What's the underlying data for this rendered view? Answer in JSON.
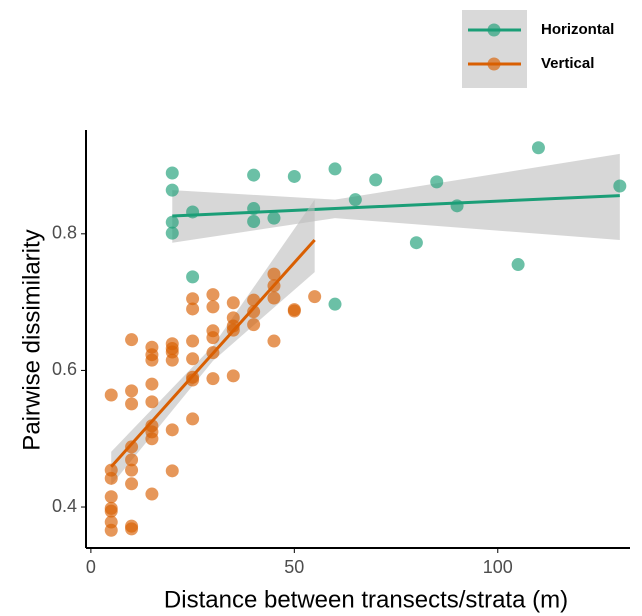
{
  "chart_data": {
    "type": "scatter",
    "x_label": "Distance between transects/strata (m)",
    "y_label": "Pairwise dissimilarity",
    "xlim": [
      -1.2,
      132.5
    ],
    "ylim": [
      0.34,
      0.952
    ],
    "xticks": [
      0,
      50,
      100
    ],
    "yticks": [
      0.4,
      0.6,
      0.8
    ],
    "legend": "top-right",
    "series": [
      {
        "name": "Horizontal",
        "color": "#1b9e77",
        "x": [
          20,
          20,
          20,
          20,
          25,
          25,
          40,
          40,
          40,
          45,
          50,
          60,
          60,
          65,
          70,
          80,
          85,
          90,
          105,
          110,
          130
        ],
        "values": [
          0.889,
          0.864,
          0.817,
          0.801,
          0.832,
          0.737,
          0.886,
          0.837,
          0.818,
          0.823,
          0.884,
          0.895,
          0.697,
          0.85,
          0.879,
          0.787,
          0.876,
          0.841,
          0.755,
          0.926,
          0.87
        ],
        "fit": {
          "x": [
            20,
            60,
            130
          ],
          "y": [
            0.826,
            0.837,
            0.856
          ],
          "lower": [
            0.787,
            0.823,
            0.791
          ],
          "upper": [
            0.864,
            0.85,
            0.917
          ]
        }
      },
      {
        "name": "Vertical",
        "color": "#d95f02",
        "x": [
          5,
          5,
          5,
          5,
          5,
          5,
          5,
          5,
          10,
          10,
          10,
          10,
          10,
          10,
          10,
          10,
          10,
          15,
          15,
          15,
          15,
          15,
          15,
          15,
          15,
          15,
          20,
          20,
          20,
          20,
          20,
          20,
          25,
          25,
          25,
          25,
          25,
          25,
          25,
          30,
          30,
          30,
          30,
          30,
          30,
          35,
          35,
          35,
          35,
          35,
          40,
          40,
          40,
          45,
          45,
          45,
          45,
          50,
          50,
          55
        ],
        "values": [
          0.564,
          0.454,
          0.442,
          0.415,
          0.398,
          0.394,
          0.378,
          0.366,
          0.645,
          0.57,
          0.551,
          0.488,
          0.469,
          0.454,
          0.434,
          0.372,
          0.368,
          0.634,
          0.623,
          0.615,
          0.58,
          0.554,
          0.519,
          0.51,
          0.5,
          0.419,
          0.639,
          0.632,
          0.627,
          0.615,
          0.513,
          0.453,
          0.705,
          0.69,
          0.643,
          0.617,
          0.59,
          0.586,
          0.529,
          0.711,
          0.693,
          0.658,
          0.648,
          0.626,
          0.588,
          0.699,
          0.677,
          0.665,
          0.659,
          0.592,
          0.703,
          0.686,
          0.667,
          0.741,
          0.724,
          0.706,
          0.643,
          0.689,
          0.687,
          0.708
        ],
        "fit": {
          "x": [
            5,
            30,
            55
          ],
          "y": [
            0.459,
            0.625,
            0.791
          ],
          "lower": [
            0.432,
            0.614,
            0.744
          ],
          "upper": [
            0.481,
            0.636,
            0.85
          ]
        }
      }
    ]
  }
}
